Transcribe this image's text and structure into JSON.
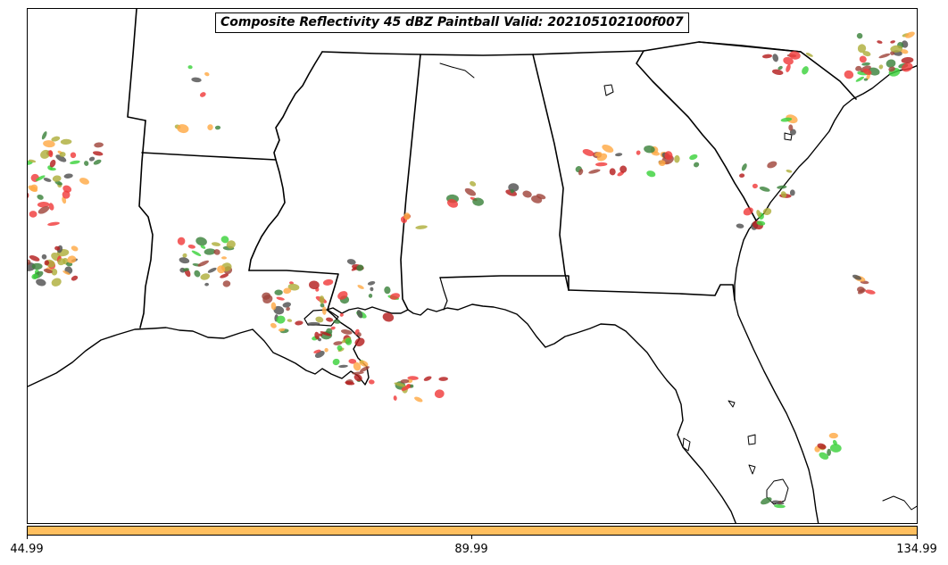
{
  "title": "Composite Reflectivity 45 dBZ Paintball Valid: 202105102100f007",
  "colorbar": {
    "color": "#ffbf5f",
    "ticks": [
      "44.99",
      "89.99",
      "134.99"
    ]
  },
  "colors": {
    "red": "#f03c3c",
    "green": "#3cd23c",
    "dark_gray": "#505050",
    "olive": "#afaf3c",
    "orange": "#ffaa46",
    "brown": "#a0463c",
    "dark_green": "#3c823c",
    "dark_red": "#b41e1e",
    "outline": "#000000"
  }
}
